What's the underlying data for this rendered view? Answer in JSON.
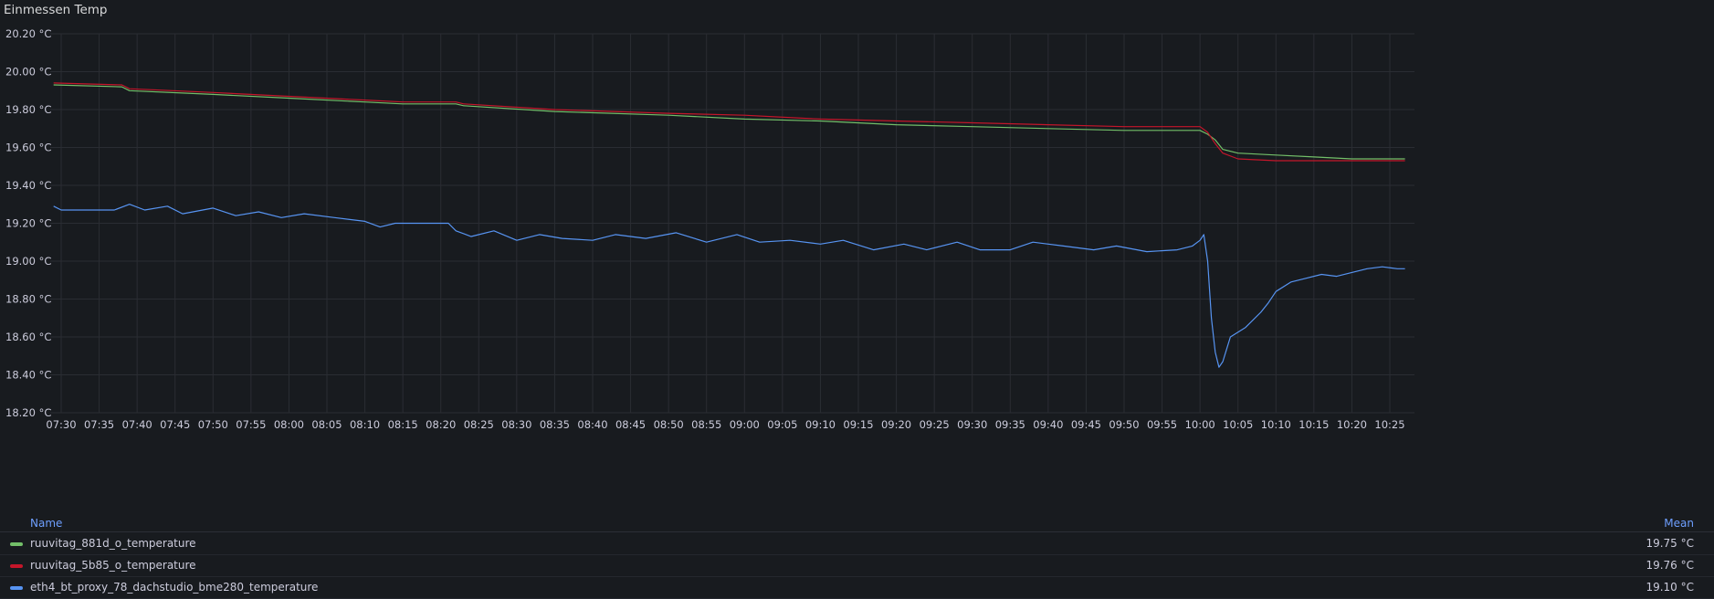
{
  "panel": {
    "title": "Einmessen Temp"
  },
  "legend": {
    "name_header": "Name",
    "mean_header": "Mean"
  },
  "chart_data": {
    "type": "line",
    "title": "Einmessen Temp",
    "unit": "°C",
    "ylim": [
      18.2,
      20.2
    ],
    "y_ticks": [
      "20.20 °C",
      "20.00 °C",
      "19.80 °C",
      "19.60 °C",
      "19.40 °C",
      "19.20 °C",
      "19.00 °C",
      "18.80 °C",
      "18.60 °C",
      "18.40 °C",
      "18.20 °C"
    ],
    "x_ticks": [
      "07:30",
      "07:35",
      "07:40",
      "07:45",
      "07:50",
      "07:55",
      "08:00",
      "08:05",
      "08:10",
      "08:15",
      "08:20",
      "08:25",
      "08:30",
      "08:35",
      "08:40",
      "08:45",
      "08:50",
      "08:55",
      "09:00",
      "09:05",
      "09:10",
      "09:15",
      "09:20",
      "09:25",
      "09:30",
      "09:35",
      "09:40",
      "09:45",
      "09:50",
      "09:55",
      "10:00",
      "10:05",
      "10:10",
      "10:15",
      "10:20",
      "10:25"
    ],
    "grid": true,
    "legend_position": "bottom",
    "series": [
      {
        "name": "ruuvitag_881d_o_temperature",
        "color": "#73bf69",
        "mean": "19.75 °C",
        "points": [
          [
            "07:29",
            19.93
          ],
          [
            "07:38",
            19.92
          ],
          [
            "07:39",
            19.9
          ],
          [
            "07:50",
            19.88
          ],
          [
            "08:00",
            19.86
          ],
          [
            "08:10",
            19.84
          ],
          [
            "08:15",
            19.83
          ],
          [
            "08:22",
            19.83
          ],
          [
            "08:23",
            19.82
          ],
          [
            "08:35",
            19.79
          ],
          [
            "08:50",
            19.77
          ],
          [
            "09:00",
            19.75
          ],
          [
            "09:10",
            19.74
          ],
          [
            "09:20",
            19.72
          ],
          [
            "09:30",
            19.71
          ],
          [
            "09:40",
            19.7
          ],
          [
            "09:50",
            19.69
          ],
          [
            "10:00",
            19.69
          ],
          [
            "10:01",
            19.67
          ],
          [
            "10:02",
            19.64
          ],
          [
            "10:03",
            19.59
          ],
          [
            "10:05",
            19.57
          ],
          [
            "10:10",
            19.56
          ],
          [
            "10:15",
            19.55
          ],
          [
            "10:20",
            19.54
          ],
          [
            "10:27",
            19.54
          ]
        ]
      },
      {
        "name": "ruuvitag_5b85_o_temperature",
        "color": "#c4162a",
        "mean": "19.76 °C",
        "points": [
          [
            "07:29",
            19.94
          ],
          [
            "07:38",
            19.93
          ],
          [
            "07:39",
            19.91
          ],
          [
            "07:50",
            19.89
          ],
          [
            "08:00",
            19.87
          ],
          [
            "08:10",
            19.85
          ],
          [
            "08:15",
            19.84
          ],
          [
            "08:22",
            19.84
          ],
          [
            "08:23",
            19.83
          ],
          [
            "08:35",
            19.8
          ],
          [
            "08:50",
            19.78
          ],
          [
            "09:00",
            19.77
          ],
          [
            "09:10",
            19.75
          ],
          [
            "09:20",
            19.74
          ],
          [
            "09:30",
            19.73
          ],
          [
            "09:40",
            19.72
          ],
          [
            "09:50",
            19.71
          ],
          [
            "10:00",
            19.71
          ],
          [
            "10:01",
            19.68
          ],
          [
            "10:02",
            19.62
          ],
          [
            "10:03",
            19.57
          ],
          [
            "10:05",
            19.54
          ],
          [
            "10:10",
            19.53
          ],
          [
            "10:15",
            19.53
          ],
          [
            "10:20",
            19.53
          ],
          [
            "10:27",
            19.53
          ]
        ]
      },
      {
        "name": "eth4_bt_proxy_78_dachstudio_bme280_temperature",
        "color": "#5794f2",
        "mean": "19.10 °C",
        "points": [
          [
            "07:29",
            19.29
          ],
          [
            "07:30",
            19.27
          ],
          [
            "07:37",
            19.27
          ],
          [
            "07:39",
            19.3
          ],
          [
            "07:41",
            19.27
          ],
          [
            "07:44",
            19.29
          ],
          [
            "07:46",
            19.25
          ],
          [
            "07:50",
            19.28
          ],
          [
            "07:53",
            19.24
          ],
          [
            "07:56",
            19.26
          ],
          [
            "07:59",
            19.23
          ],
          [
            "08:02",
            19.25
          ],
          [
            "08:06",
            19.23
          ],
          [
            "08:10",
            19.21
          ],
          [
            "08:12",
            19.18
          ],
          [
            "08:14",
            19.2
          ],
          [
            "08:21",
            19.2
          ],
          [
            "08:22",
            19.16
          ],
          [
            "08:24",
            19.13
          ],
          [
            "08:27",
            19.16
          ],
          [
            "08:30",
            19.11
          ],
          [
            "08:33",
            19.14
          ],
          [
            "08:36",
            19.12
          ],
          [
            "08:40",
            19.11
          ],
          [
            "08:43",
            19.14
          ],
          [
            "08:47",
            19.12
          ],
          [
            "08:51",
            19.15
          ],
          [
            "08:55",
            19.1
          ],
          [
            "08:59",
            19.14
          ],
          [
            "09:02",
            19.1
          ],
          [
            "09:06",
            19.11
          ],
          [
            "09:10",
            19.09
          ],
          [
            "09:13",
            19.11
          ],
          [
            "09:17",
            19.06
          ],
          [
            "09:21",
            19.09
          ],
          [
            "09:24",
            19.06
          ],
          [
            "09:28",
            19.1
          ],
          [
            "09:31",
            19.06
          ],
          [
            "09:35",
            19.06
          ],
          [
            "09:38",
            19.1
          ],
          [
            "09:42",
            19.08
          ],
          [
            "09:46",
            19.06
          ],
          [
            "09:49",
            19.08
          ],
          [
            "09:53",
            19.05
          ],
          [
            "09:57",
            19.06
          ],
          [
            "09:59",
            19.08
          ],
          [
            "10:00",
            19.11
          ],
          [
            "10:00.5",
            19.14
          ],
          [
            "10:01",
            19.0
          ],
          [
            "10:01.5",
            18.7
          ],
          [
            "10:02",
            18.52
          ],
          [
            "10:02.5",
            18.44
          ],
          [
            "10:03",
            18.47
          ],
          [
            "10:04",
            18.6
          ],
          [
            "10:06",
            18.65
          ],
          [
            "10:08",
            18.73
          ],
          [
            "10:09",
            18.78
          ],
          [
            "10:10",
            18.84
          ],
          [
            "10:12",
            18.89
          ],
          [
            "10:14",
            18.91
          ],
          [
            "10:16",
            18.93
          ],
          [
            "10:18",
            18.92
          ],
          [
            "10:20",
            18.94
          ],
          [
            "10:22",
            18.96
          ],
          [
            "10:24",
            18.97
          ],
          [
            "10:26",
            18.96
          ],
          [
            "10:27",
            18.96
          ]
        ]
      }
    ]
  }
}
